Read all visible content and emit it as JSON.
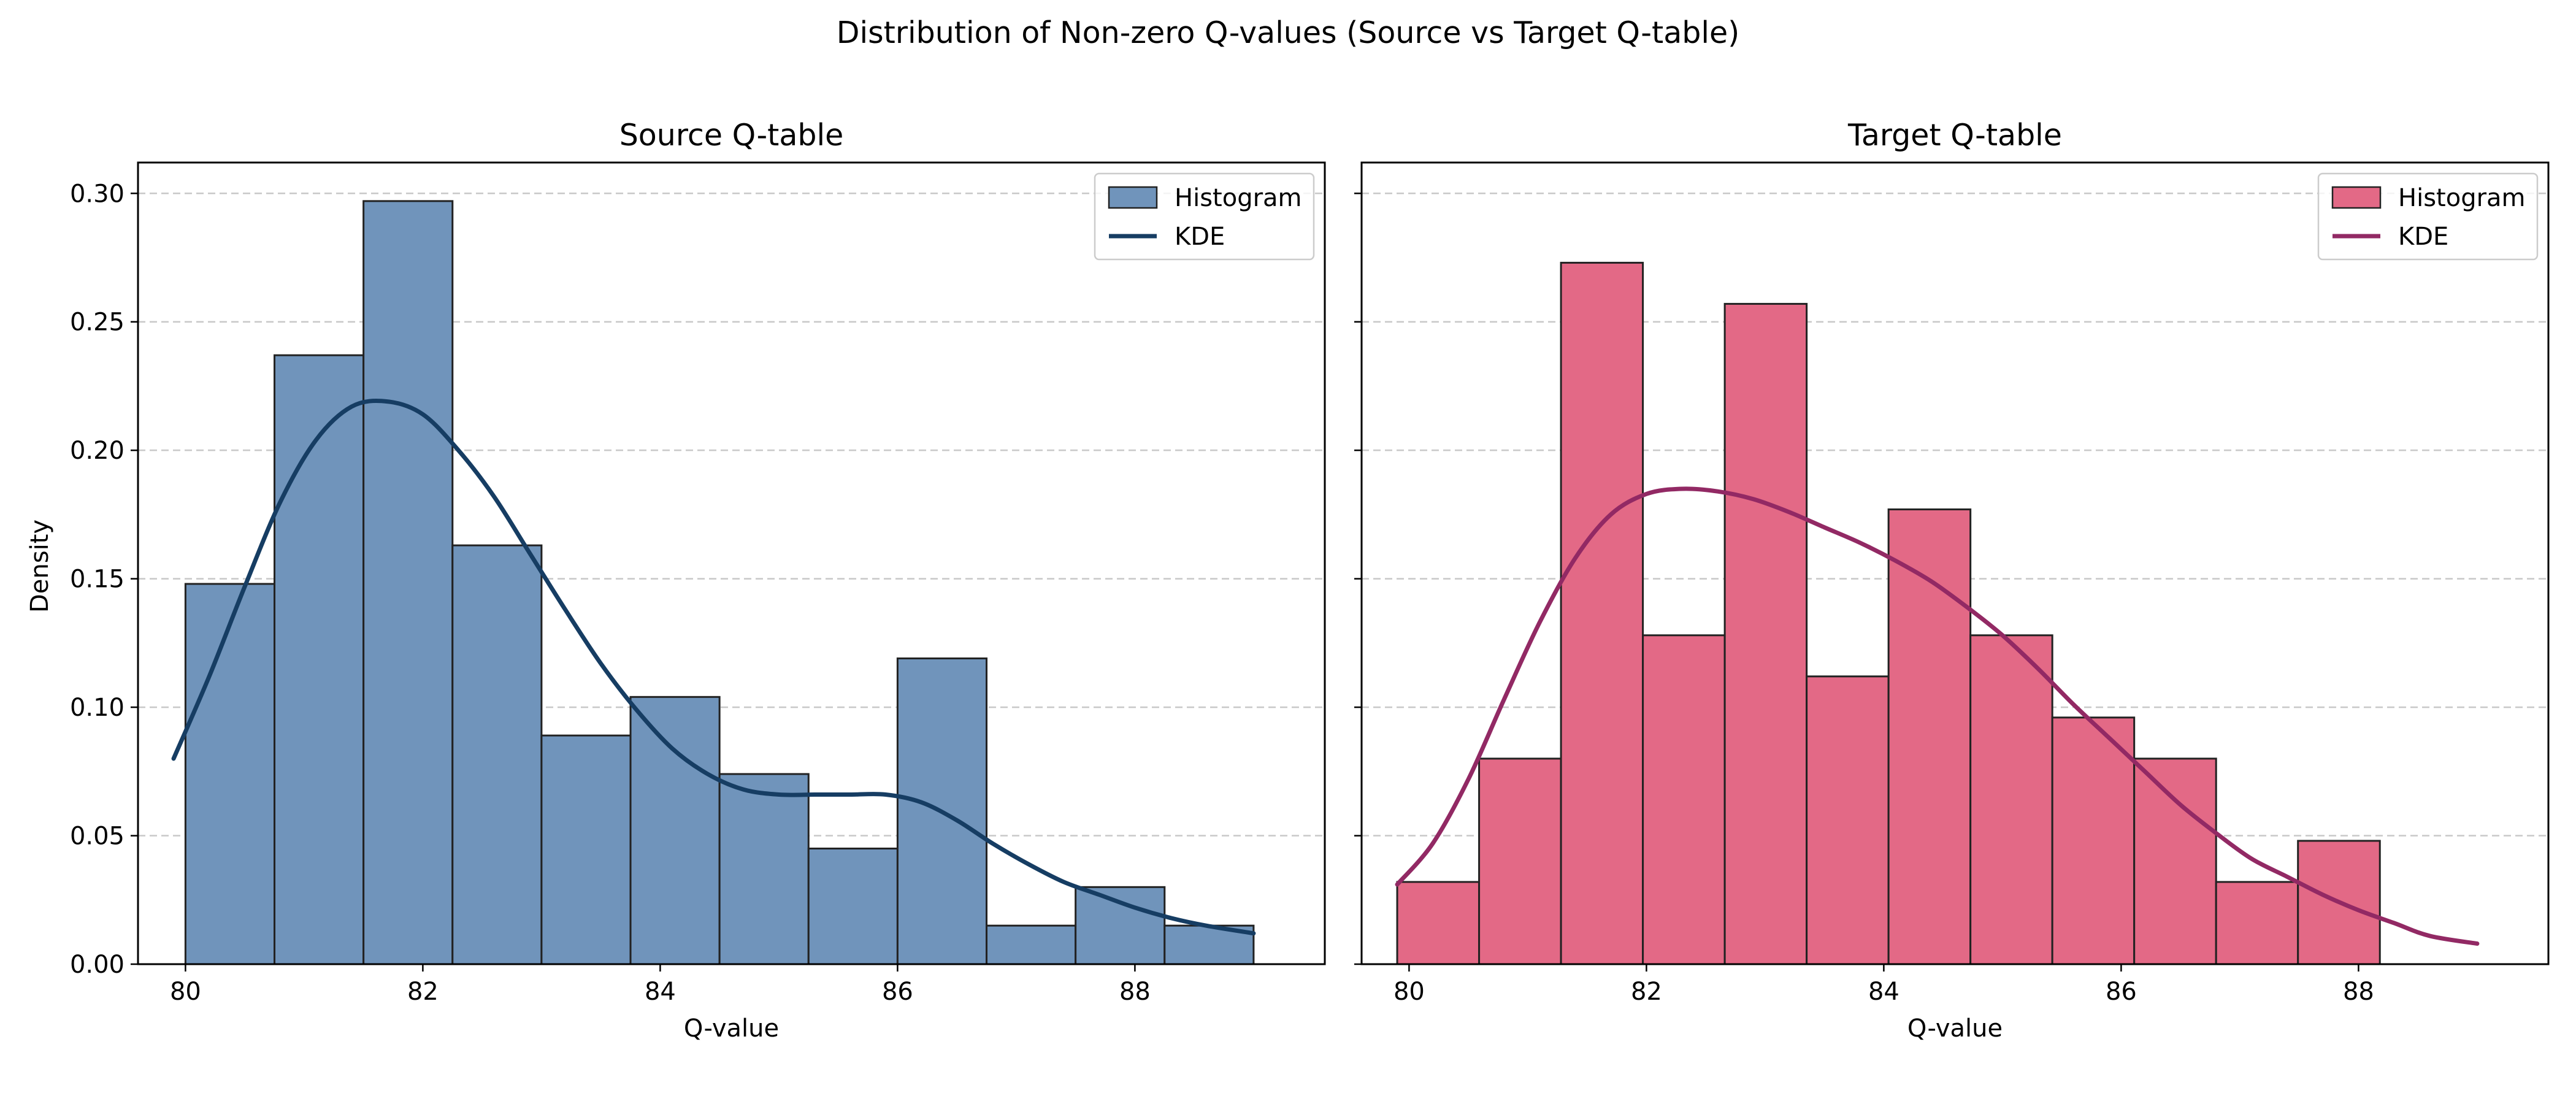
{
  "figure": {
    "title": "Distribution of Non-zero Q-values (Source vs Target Q-table)",
    "ylabel": "Density"
  },
  "chart_data": [
    {
      "type": "bar",
      "title": "Source Q-table",
      "xlabel": "Q-value",
      "ylabel": "Density",
      "xlim": [
        79.6,
        89.6
      ],
      "ylim": [
        0,
        0.312
      ],
      "xticks": [
        80,
        82,
        84,
        86,
        88
      ],
      "yticks": [
        0.0,
        0.05,
        0.1,
        0.15,
        0.2,
        0.25,
        0.3
      ],
      "grid": "y-dashed",
      "legend_position": "top-right",
      "bar_color": "#7094BB",
      "kde_color": "#163D63",
      "histogram": {
        "name": "Histogram",
        "bin_edges": [
          80.0,
          80.75,
          81.5,
          82.25,
          83.0,
          83.75,
          84.5,
          85.25,
          86.0,
          86.75,
          87.5,
          88.25,
          89.0
        ],
        "values": [
          0.148,
          0.237,
          0.297,
          0.163,
          0.089,
          0.104,
          0.074,
          0.045,
          0.119,
          0.015,
          0.03,
          0.015
        ]
      },
      "kde": {
        "name": "KDE",
        "x": [
          79.9,
          80.2,
          80.5,
          80.8,
          81.1,
          81.4,
          81.7,
          82.0,
          82.3,
          82.6,
          82.9,
          83.2,
          83.5,
          83.8,
          84.1,
          84.4,
          84.7,
          85.0,
          85.3,
          85.6,
          85.9,
          86.2,
          86.5,
          86.8,
          87.1,
          87.4,
          87.7,
          88.0,
          88.3,
          88.6,
          89.0
        ],
        "y": [
          0.08,
          0.112,
          0.147,
          0.18,
          0.204,
          0.217,
          0.219,
          0.214,
          0.2,
          0.182,
          0.16,
          0.138,
          0.117,
          0.099,
          0.084,
          0.074,
          0.068,
          0.066,
          0.066,
          0.066,
          0.066,
          0.063,
          0.056,
          0.047,
          0.039,
          0.032,
          0.027,
          0.022,
          0.018,
          0.015,
          0.012
        ]
      }
    },
    {
      "type": "bar",
      "title": "Target Q-table",
      "xlabel": "Q-value",
      "ylabel": "",
      "xlim": [
        79.6,
        89.6
      ],
      "ylim": [
        0,
        0.312
      ],
      "xticks": [
        80,
        82,
        84,
        86,
        88
      ],
      "yticks": [
        0.0,
        0.05,
        0.1,
        0.15,
        0.2,
        0.25,
        0.3
      ],
      "grid": "y-dashed",
      "legend_position": "top-right",
      "bar_color": "#E36986",
      "kde_color": "#922964",
      "histogram": {
        "name": "Histogram",
        "bin_edges": [
          79.9,
          80.59,
          81.28,
          81.97,
          82.66,
          83.35,
          84.04,
          84.73,
          85.42,
          86.11,
          86.8,
          87.49,
          88.18
        ],
        "values": [
          0.032,
          0.08,
          0.273,
          0.128,
          0.257,
          0.112,
          0.177,
          0.128,
          0.096,
          0.08,
          0.032,
          0.048
        ]
      },
      "kde": {
        "name": "KDE",
        "x": [
          79.9,
          80.2,
          80.5,
          80.8,
          81.1,
          81.4,
          81.7,
          82.0,
          82.3,
          82.6,
          82.9,
          83.2,
          83.5,
          83.8,
          84.1,
          84.4,
          84.7,
          85.0,
          85.3,
          85.6,
          85.9,
          86.2,
          86.5,
          86.8,
          87.1,
          87.4,
          87.7,
          88.0,
          88.3,
          88.6,
          89.0
        ],
        "y": [
          0.031,
          0.047,
          0.072,
          0.103,
          0.133,
          0.158,
          0.175,
          0.183,
          0.185,
          0.184,
          0.181,
          0.176,
          0.17,
          0.164,
          0.157,
          0.149,
          0.139,
          0.128,
          0.115,
          0.101,
          0.088,
          0.075,
          0.062,
          0.051,
          0.041,
          0.034,
          0.027,
          0.021,
          0.016,
          0.011,
          0.008
        ]
      }
    }
  ]
}
